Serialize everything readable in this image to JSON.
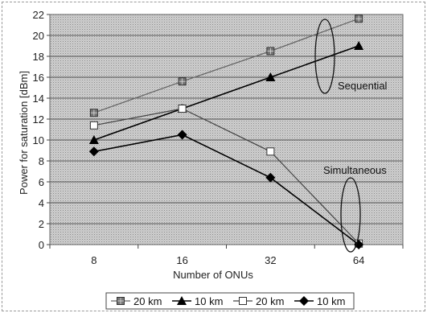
{
  "chart_data": {
    "type": "line",
    "categories": [
      "8",
      "16",
      "32",
      "64"
    ],
    "xlabel": "Number of ONUs",
    "ylabel": "Power for saturation [dBm]",
    "ylim": [
      0,
      22
    ],
    "yticks": [
      0,
      2,
      4,
      6,
      8,
      10,
      12,
      14,
      16,
      18,
      20,
      22
    ],
    "grid": true,
    "legend_position": "bottom",
    "series": [
      {
        "name": "20 km",
        "marker": "square-filled",
        "values": [
          12.6,
          15.6,
          18.5,
          21.6
        ]
      },
      {
        "name": "10 km",
        "marker": "triangle-filled",
        "values": [
          10.0,
          13.0,
          16.0,
          19.0
        ]
      },
      {
        "name": "20 km",
        "marker": "square-open",
        "values": [
          11.4,
          13.0,
          8.9,
          0.1
        ]
      },
      {
        "name": "10 km",
        "marker": "diamond-filled",
        "values": [
          8.9,
          10.5,
          6.4,
          0.0
        ]
      }
    ],
    "annotations": [
      {
        "text": "Sequential"
      },
      {
        "text": "Simultaneous"
      }
    ]
  }
}
